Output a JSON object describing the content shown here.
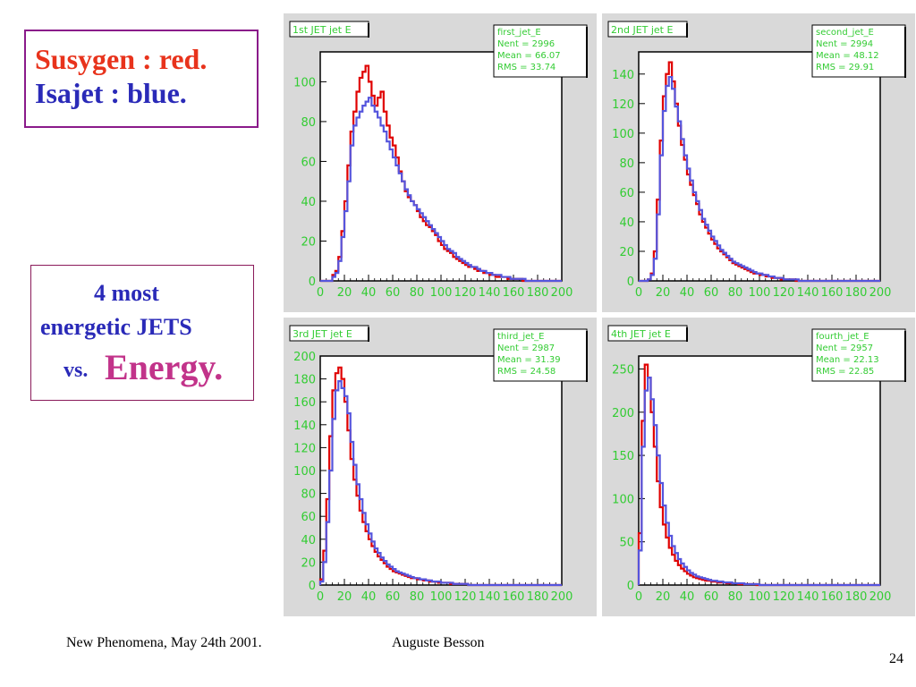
{
  "legend": {
    "line1": "Susygen : red.",
    "line2": "Isajet : blue.",
    "color1": "#e8331c",
    "color2": "#2a2ab8"
  },
  "description": {
    "line1": "4 most",
    "line2": "energetic JETS",
    "vs": "vs.",
    "energy": "Energy."
  },
  "footer": {
    "left": "New Phenomena, May 24th 2001.",
    "center": "Auguste Besson",
    "page": "24"
  },
  "colors": {
    "susygen": "#e00000",
    "isajet": "#5555dd",
    "frame_bg": "#d9d9d9",
    "label_green": "#33cc33"
  },
  "chart_data": [
    {
      "type": "line",
      "title": "1st JET jet E",
      "stats": {
        "name": "first_jet_E",
        "nent": "Nent = 2996",
        "mean": "Mean = 66.07",
        "rms": "RMS  = 33.74"
      },
      "xlim": [
        0,
        200
      ],
      "ylim": [
        0,
        115
      ],
      "xticks": [
        0,
        20,
        40,
        60,
        80,
        100,
        120,
        140,
        160,
        180,
        200
      ],
      "yticks": [
        0,
        20,
        40,
        60,
        80,
        100
      ],
      "series": [
        {
          "name": "Susygen",
          "color": "#e00000",
          "values": [
            0,
            0,
            0,
            0,
            3,
            5,
            12,
            25,
            40,
            58,
            75,
            85,
            95,
            102,
            105,
            108,
            100,
            93,
            88,
            92,
            95,
            85,
            78,
            72,
            68,
            62,
            55,
            50,
            45,
            42,
            40,
            38,
            35,
            32,
            30,
            28,
            27,
            25,
            23,
            20,
            18,
            16,
            15,
            14,
            12,
            11,
            10,
            9,
            8,
            7,
            7,
            6,
            5,
            5,
            4,
            4,
            3,
            3,
            2,
            2,
            2,
            2,
            1,
            1,
            1,
            1,
            1,
            0,
            0,
            0,
            0,
            0,
            0,
            0,
            0,
            0,
            0,
            0,
            0,
            0
          ]
        },
        {
          "name": "Isajet",
          "color": "#5555dd",
          "values": [
            0,
            0,
            0,
            0,
            2,
            4,
            10,
            22,
            35,
            50,
            68,
            78,
            82,
            85,
            88,
            90,
            92,
            88,
            85,
            82,
            78,
            75,
            70,
            66,
            62,
            58,
            54,
            50,
            46,
            43,
            40,
            38,
            36,
            34,
            32,
            30,
            28,
            26,
            24,
            22,
            20,
            18,
            16,
            15,
            14,
            12,
            11,
            10,
            9,
            8,
            7,
            7,
            6,
            5,
            5,
            4,
            4,
            3,
            3,
            3,
            2,
            2,
            2,
            1,
            1,
            1,
            1,
            1,
            0,
            0,
            0,
            0,
            0,
            0,
            0,
            0,
            0,
            0,
            0,
            0
          ]
        }
      ]
    },
    {
      "type": "line",
      "title": "2nd JET jet E",
      "stats": {
        "name": "second_jet_E",
        "nent": "Nent = 2994",
        "mean": "Mean = 48.12",
        "rms": "RMS  = 29.91"
      },
      "xlim": [
        0,
        200
      ],
      "ylim": [
        0,
        155
      ],
      "xticks": [
        0,
        20,
        40,
        60,
        80,
        100,
        120,
        140,
        160,
        180,
        200
      ],
      "yticks": [
        0,
        20,
        40,
        60,
        80,
        100,
        120,
        140
      ],
      "series": [
        {
          "name": "Susygen",
          "color": "#e00000",
          "values": [
            0,
            0,
            0,
            1,
            5,
            20,
            55,
            95,
            125,
            140,
            148,
            135,
            120,
            105,
            92,
            82,
            72,
            65,
            58,
            52,
            45,
            40,
            36,
            32,
            28,
            25,
            22,
            20,
            18,
            16,
            14,
            12,
            11,
            10,
            9,
            8,
            7,
            6,
            5,
            5,
            4,
            4,
            3,
            3,
            2,
            2,
            2,
            1,
            1,
            1,
            1,
            1,
            0,
            0,
            0,
            0,
            0,
            0,
            0,
            0,
            0,
            0,
            0,
            0,
            0,
            0,
            0,
            0,
            0,
            0,
            0,
            0,
            0,
            0,
            0,
            0,
            0,
            0,
            0,
            0
          ]
        },
        {
          "name": "Isajet",
          "color": "#5555dd",
          "values": [
            0,
            0,
            0,
            1,
            4,
            15,
            45,
            85,
            115,
            132,
            138,
            130,
            118,
            108,
            96,
            85,
            76,
            68,
            60,
            54,
            48,
            42,
            38,
            34,
            30,
            27,
            24,
            21,
            19,
            17,
            15,
            13,
            12,
            11,
            10,
            9,
            8,
            7,
            6,
            5,
            5,
            4,
            4,
            3,
            3,
            2,
            2,
            2,
            1,
            1,
            1,
            1,
            1,
            0,
            0,
            0,
            0,
            0,
            0,
            0,
            0,
            0,
            0,
            0,
            0,
            0,
            0,
            0,
            0,
            0,
            0,
            0,
            0,
            0,
            0,
            0,
            0,
            0,
            0,
            0
          ]
        }
      ]
    },
    {
      "type": "line",
      "title": "3rd JET jet E",
      "stats": {
        "name": "third_jet_E",
        "nent": "Nent = 2987",
        "mean": "Mean = 31.39",
        "rms": "RMS  = 24.58"
      },
      "xlim": [
        0,
        200
      ],
      "ylim": [
        0,
        200
      ],
      "xticks": [
        0,
        20,
        40,
        60,
        80,
        100,
        120,
        140,
        160,
        180,
        200
      ],
      "yticks": [
        0,
        20,
        40,
        60,
        80,
        100,
        120,
        140,
        160,
        180,
        200
      ],
      "series": [
        {
          "name": "Susygen",
          "color": "#e00000",
          "values": [
            5,
            30,
            75,
            130,
            170,
            185,
            190,
            180,
            160,
            135,
            110,
            92,
            78,
            65,
            55,
            47,
            40,
            34,
            29,
            25,
            22,
            19,
            16,
            14,
            12,
            11,
            10,
            9,
            8,
            7,
            6,
            6,
            5,
            5,
            4,
            4,
            3,
            3,
            3,
            2,
            2,
            2,
            2,
            1,
            1,
            1,
            1,
            1,
            1,
            0,
            0,
            0,
            0,
            0,
            0,
            0,
            0,
            0,
            0,
            0,
            0,
            0,
            0,
            0,
            0,
            0,
            0,
            0,
            0,
            0,
            0,
            0,
            0,
            0,
            0,
            0,
            0,
            0,
            0,
            0
          ]
        },
        {
          "name": "Isajet",
          "color": "#5555dd",
          "values": [
            3,
            20,
            55,
            100,
            145,
            170,
            178,
            172,
            165,
            150,
            125,
            105,
            88,
            75,
            63,
            53,
            45,
            38,
            32,
            28,
            24,
            21,
            18,
            16,
            14,
            12,
            11,
            10,
            9,
            8,
            7,
            6,
            6,
            5,
            5,
            4,
            4,
            3,
            3,
            3,
            2,
            2,
            2,
            2,
            1,
            1,
            1,
            1,
            1,
            0,
            0,
            0,
            0,
            0,
            0,
            0,
            0,
            0,
            0,
            0,
            0,
            0,
            0,
            0,
            0,
            0,
            0,
            0,
            0,
            0,
            0,
            0,
            0,
            0,
            0,
            0,
            0,
            0,
            0,
            0
          ]
        }
      ]
    },
    {
      "type": "line",
      "title": "4th JET jet E",
      "stats": {
        "name": "fourth_jet_E",
        "nent": "Nent = 2957",
        "mean": "Mean = 22.13",
        "rms": "RMS  = 22.85"
      },
      "xlim": [
        0,
        200
      ],
      "ylim": [
        0,
        265
      ],
      "xticks": [
        0,
        20,
        40,
        60,
        80,
        100,
        120,
        140,
        160,
        180,
        200
      ],
      "yticks": [
        0,
        50,
        100,
        150,
        200,
        250
      ],
      "series": [
        {
          "name": "Susygen",
          "color": "#e00000",
          "values": [
            60,
            190,
            255,
            240,
            200,
            160,
            120,
            90,
            70,
            55,
            43,
            35,
            28,
            23,
            19,
            16,
            13,
            11,
            9,
            8,
            7,
            6,
            5,
            5,
            4,
            4,
            3,
            3,
            3,
            2,
            2,
            2,
            2,
            1,
            1,
            1,
            1,
            1,
            1,
            0,
            0,
            0,
            0,
            0,
            0,
            0,
            0,
            0,
            0,
            0,
            0,
            0,
            0,
            0,
            0,
            0,
            0,
            0,
            0,
            0,
            0,
            0,
            0,
            0,
            0,
            0,
            0,
            0,
            0,
            0,
            0,
            0,
            0,
            0,
            0,
            0,
            0,
            0,
            0,
            0
          ]
        },
        {
          "name": "Isajet",
          "color": "#5555dd",
          "values": [
            40,
            160,
            225,
            240,
            215,
            185,
            150,
            118,
            92,
            72,
            57,
            45,
            37,
            30,
            25,
            21,
            17,
            14,
            12,
            10,
            9,
            8,
            7,
            6,
            5,
            5,
            4,
            4,
            3,
            3,
            3,
            2,
            2,
            2,
            2,
            1,
            1,
            1,
            1,
            1,
            0,
            0,
            0,
            0,
            0,
            0,
            0,
            0,
            0,
            0,
            0,
            0,
            0,
            0,
            0,
            0,
            0,
            0,
            0,
            0,
            0,
            0,
            0,
            0,
            0,
            0,
            0,
            0,
            0,
            0,
            0,
            0,
            0,
            0,
            0,
            0,
            0,
            0,
            0,
            0
          ]
        }
      ]
    }
  ]
}
